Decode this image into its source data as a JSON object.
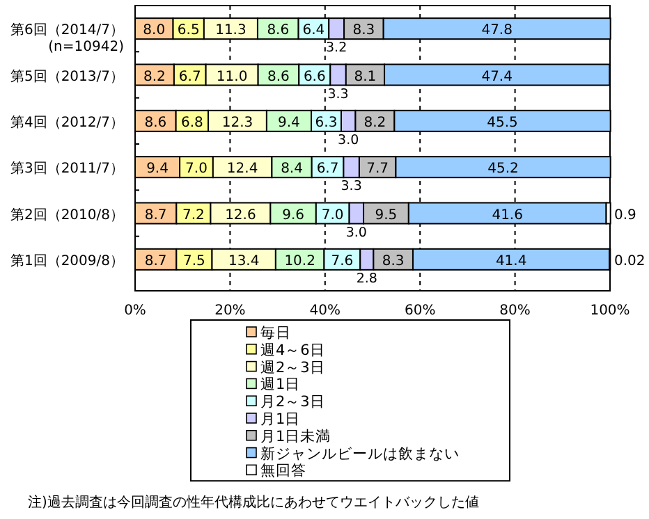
{
  "chart_data": {
    "type": "bar",
    "orientation": "horizontal",
    "stacked": true,
    "grid": "x",
    "legend": "bottom",
    "categories": [
      "第6回（2014/7）",
      "第5回（2013/7）",
      "第4回（2012/7）",
      "第3回（2011/7）",
      "第2回（2010/8）",
      "第1回（2009/8）"
    ],
    "xlim": [
      0,
      100
    ],
    "xticks": [
      {
        "value": 0,
        "label": "0%"
      },
      {
        "value": 20,
        "label": "20%"
      },
      {
        "value": 40,
        "label": "40%"
      },
      {
        "value": 60,
        "label": "60%"
      },
      {
        "value": 80,
        "label": "80%"
      },
      {
        "value": 100,
        "label": "100%"
      }
    ],
    "series": [
      {
        "name": "毎日",
        "color": "#ffcc99",
        "values": [
          8.0,
          8.2,
          8.6,
          9.4,
          8.7,
          8.7
        ],
        "value_labels": [
          "8.0",
          "8.2",
          "8.6",
          "9.4",
          "8.7",
          "8.7"
        ]
      },
      {
        "name": "週4～6日",
        "color": "#ffff99",
        "values": [
          6.5,
          6.7,
          6.8,
          7.0,
          7.2,
          7.5
        ],
        "value_labels": [
          "6.5",
          "6.7",
          "6.8",
          "7.0",
          "7.2",
          "7.5"
        ]
      },
      {
        "name": "週2～3日",
        "color": "#ffffcc",
        "values": [
          11.3,
          11.0,
          12.3,
          12.4,
          12.6,
          13.4
        ],
        "value_labels": [
          "11.3",
          "11.0",
          "12.3",
          "12.4",
          "12.6",
          "13.4"
        ]
      },
      {
        "name": "週1日",
        "color": "#ccffcc",
        "values": [
          8.6,
          8.6,
          9.4,
          8.4,
          9.6,
          10.2
        ],
        "value_labels": [
          "8.6",
          "8.6",
          "9.4",
          "8.4",
          "9.6",
          "10.2"
        ]
      },
      {
        "name": "月2～3日",
        "color": "#ccffff",
        "values": [
          6.4,
          6.6,
          6.3,
          6.7,
          7.0,
          7.6
        ],
        "value_labels": [
          "6.4",
          "6.6",
          "6.3",
          "6.7",
          "7.0",
          "7.6"
        ]
      },
      {
        "name": "月1日",
        "color": "#ccccff",
        "values": [
          3.2,
          3.3,
          3.0,
          3.3,
          3.0,
          2.8
        ],
        "value_labels": [
          "3.2",
          "3.3",
          "3.0",
          "3.3",
          "3.0",
          "2.8"
        ]
      },
      {
        "name": "月1日未満",
        "color": "#c0c0c0",
        "values": [
          8.3,
          8.1,
          8.2,
          7.7,
          9.5,
          8.3
        ],
        "value_labels": [
          "8.3",
          "8.1",
          "8.2",
          "7.7",
          "9.5",
          "8.3"
        ]
      },
      {
        "name": "新ジャンルビールは飲まない",
        "color": "#99ccff",
        "values": [
          47.8,
          47.4,
          45.5,
          45.2,
          41.6,
          41.4
        ],
        "value_labels": [
          "47.8",
          "47.4",
          "45.5",
          "45.2",
          "41.6",
          "41.4"
        ]
      },
      {
        "name": "無回答",
        "color": "#ffffff",
        "values": [
          null,
          null,
          null,
          null,
          0.9,
          0.02
        ],
        "value_labels": [
          null,
          null,
          null,
          null,
          "0.9",
          "0.02"
        ]
      }
    ],
    "annotations": [
      "(n=10942)",
      "注)過去調査は今回調査の性年代構成比にあわせてウエイトバックした値"
    ]
  }
}
